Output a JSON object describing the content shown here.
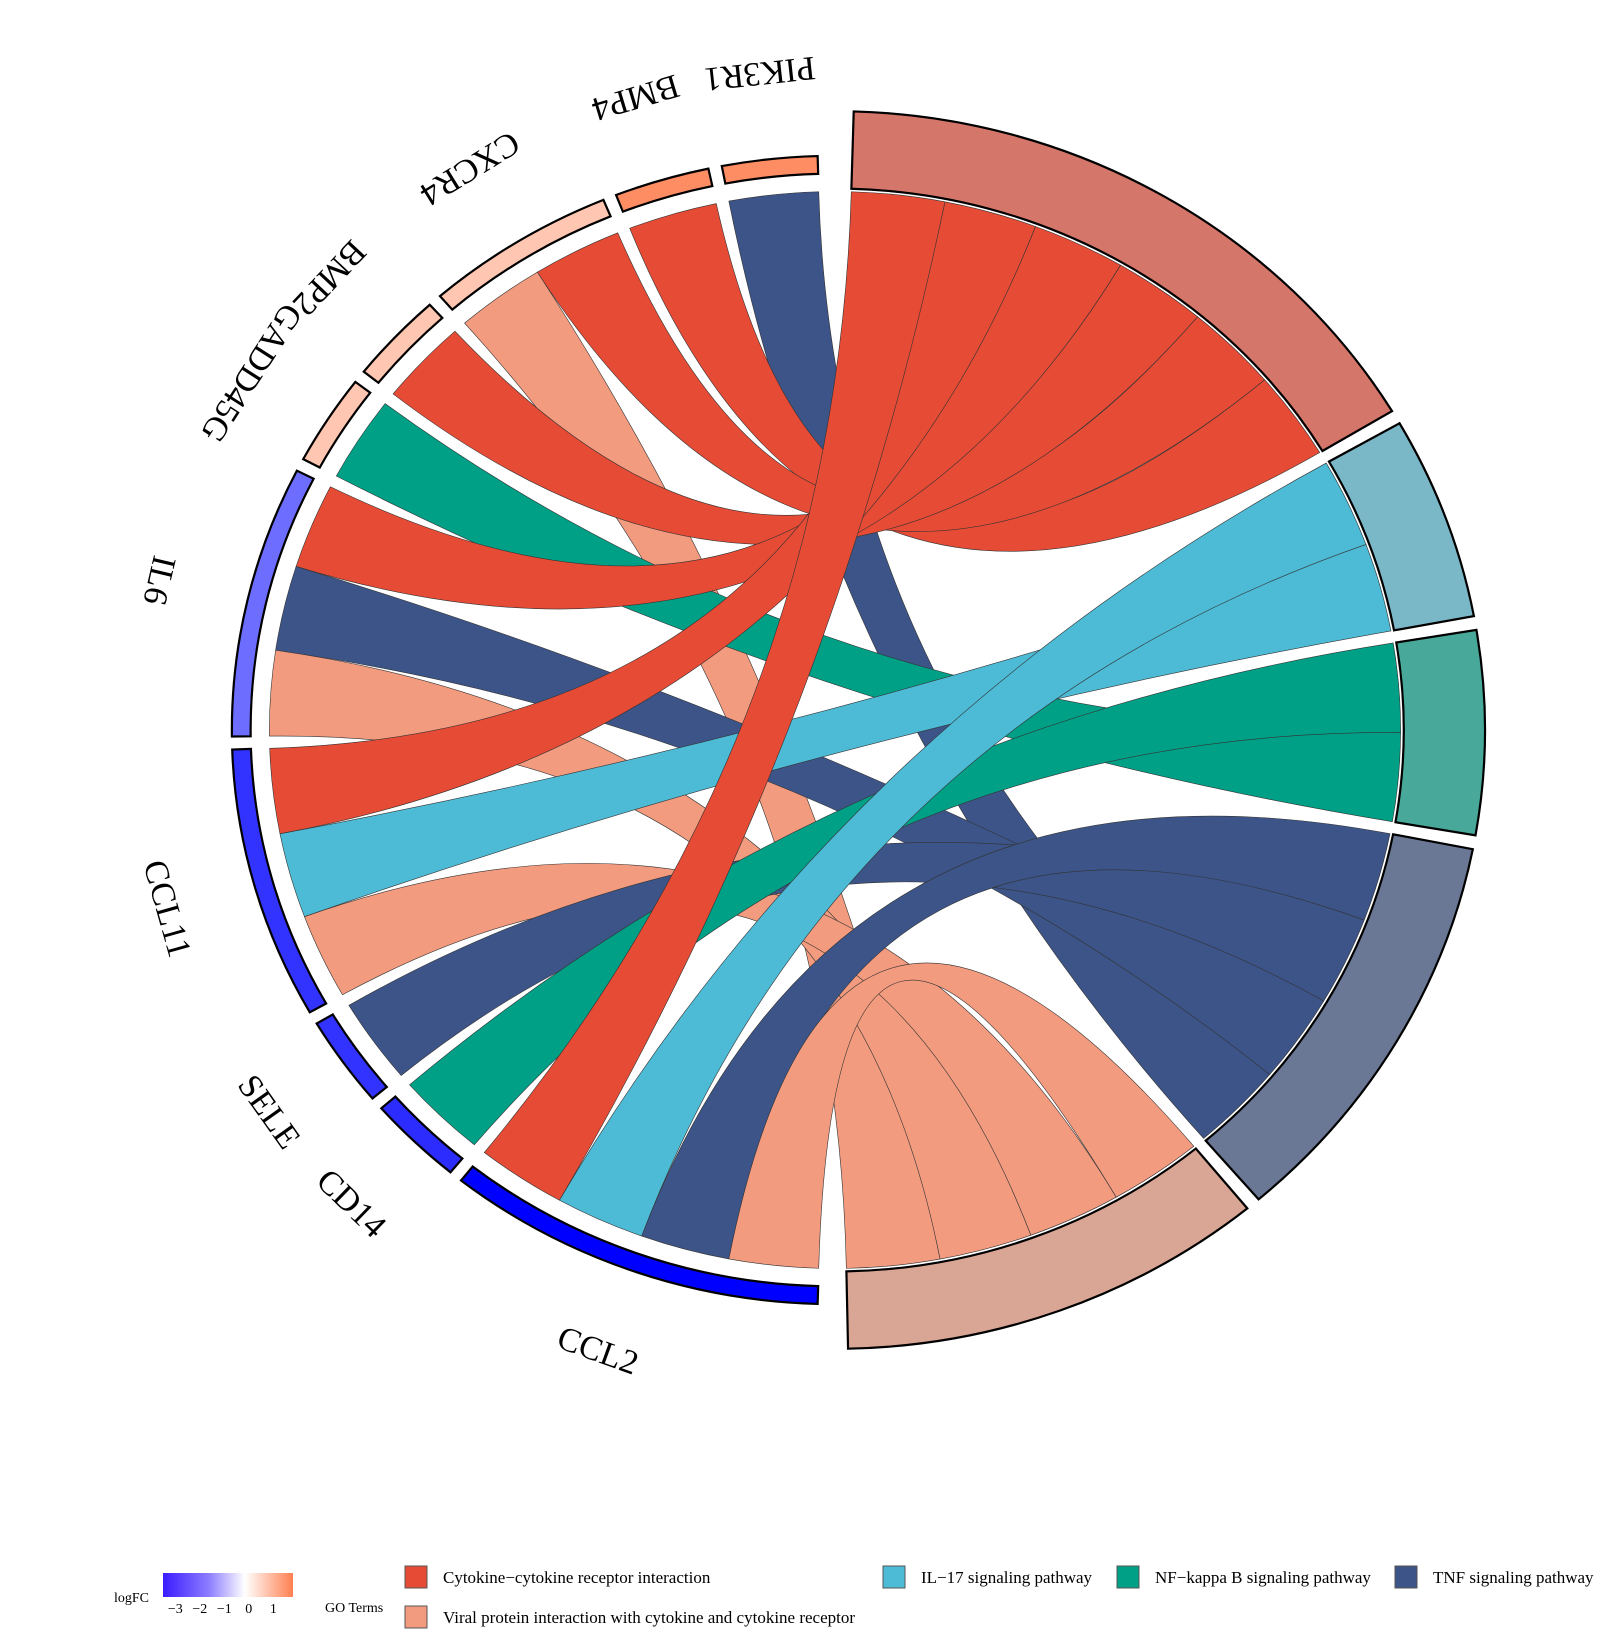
{
  "chart_data": {
    "type": "chord",
    "title": "",
    "genes": [
      {
        "name": "PIK3R1",
        "logFC": 1.6
      },
      {
        "name": "BMP4",
        "logFC": 1.6
      },
      {
        "name": "CXCR4",
        "logFC": 0.8
      },
      {
        "name": "BMP2",
        "logFC": 0.8
      },
      {
        "name": "GADD45G",
        "logFC": 0.8
      },
      {
        "name": "IL6",
        "logFC": -2.0
      },
      {
        "name": "CCL11",
        "logFC": -2.8
      },
      {
        "name": "SELE",
        "logFC": -2.8
      },
      {
        "name": "CD14",
        "logFC": -2.9
      },
      {
        "name": "CCL2",
        "logFC": -3.5
      }
    ],
    "terms": [
      {
        "name": "Cytokine−cytokine receptor interaction",
        "color": "#E64B35"
      },
      {
        "name": "IL−17 signaling pathway",
        "color": "#4DBBD5"
      },
      {
        "name": "NF−kappa B signaling pathway",
        "color": "#00A087"
      },
      {
        "name": "TNF signaling pathway",
        "color": "#3C5488"
      },
      {
        "name": "Viral protein interaction with cytokine and cytokine receptor",
        "color": "#F39B7F"
      }
    ],
    "links": [
      {
        "gene": "PIK3R1",
        "term": "TNF signaling pathway"
      },
      {
        "gene": "BMP4",
        "term": "Cytokine−cytokine receptor interaction"
      },
      {
        "gene": "CXCR4",
        "term": "Cytokine−cytokine receptor interaction"
      },
      {
        "gene": "CXCR4",
        "term": "Viral protein interaction with cytokine and cytokine receptor"
      },
      {
        "gene": "BMP2",
        "term": "Cytokine−cytokine receptor interaction"
      },
      {
        "gene": "GADD45G",
        "term": "NF−kappa B signaling pathway"
      },
      {
        "gene": "IL6",
        "term": "Cytokine−cytokine receptor interaction"
      },
      {
        "gene": "IL6",
        "term": "TNF signaling pathway"
      },
      {
        "gene": "IL6",
        "term": "Viral protein interaction with cytokine and cytokine receptor"
      },
      {
        "gene": "CCL11",
        "term": "Cytokine−cytokine receptor interaction"
      },
      {
        "gene": "CCL11",
        "term": "IL−17 signaling pathway"
      },
      {
        "gene": "CCL11",
        "term": "Viral protein interaction with cytokine and cytokine receptor"
      },
      {
        "gene": "SELE",
        "term": "TNF signaling pathway"
      },
      {
        "gene": "CD14",
        "term": "NF−kappa B signaling pathway"
      },
      {
        "gene": "CCL2",
        "term": "Cytokine−cytokine receptor interaction"
      },
      {
        "gene": "CCL2",
        "term": "IL−17 signaling pathway"
      },
      {
        "gene": "CCL2",
        "term": "TNF signaling pathway"
      },
      {
        "gene": "CCL2",
        "term": "Viral protein interaction with cytokine and cytokine receptor"
      }
    ],
    "logfc_scale": {
      "label": "logFC",
      "ticks": [
        "−3",
        "−2",
        "−1",
        "0",
        "1"
      ],
      "min": -3.5,
      "max": 1.8,
      "low_color": "#0000FF",
      "mid_color": "#FFFFFF",
      "high_color": "#FF7F50"
    },
    "legend_title": "GO Terms",
    "legend_position": "bottom"
  }
}
